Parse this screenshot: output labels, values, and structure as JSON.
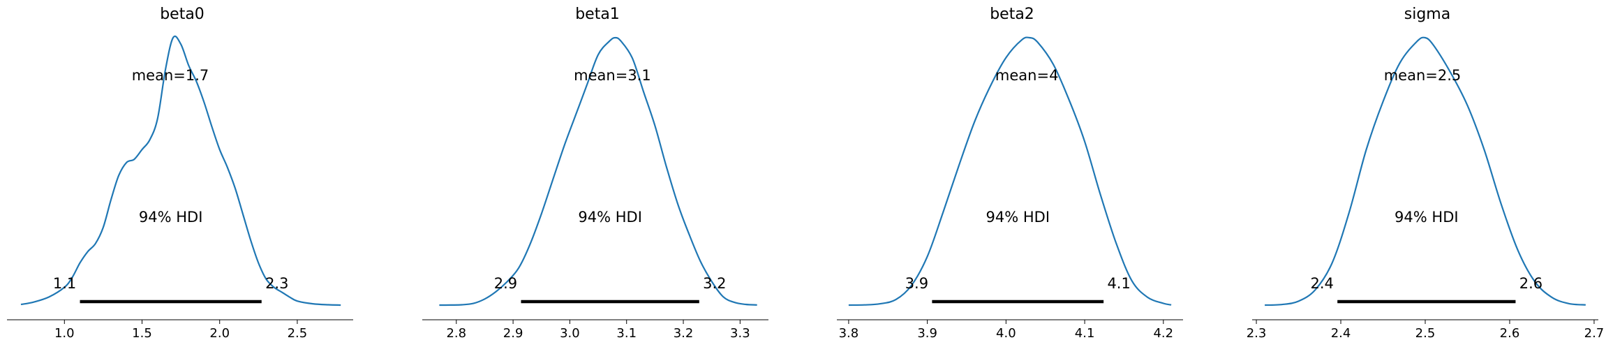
{
  "chart_data": [
    {
      "type": "line",
      "title": "beta0",
      "mean_label": "mean=1.7",
      "hdi_label": "94% HDI",
      "hdi": [
        1.1,
        2.27
      ],
      "hdi_low_label": "1.1",
      "hdi_high_label": "2.3",
      "xlim": [
        0.63,
        2.86
      ],
      "xticks": [
        1.0,
        1.5,
        2.0,
        2.5
      ],
      "xtick_labels": [
        "1.0",
        "1.5",
        "2.0",
        "2.5"
      ],
      "color": "#1f77b4",
      "x": [
        0.72,
        0.8,
        0.9,
        1.0,
        1.05,
        1.1,
        1.15,
        1.2,
        1.25,
        1.3,
        1.35,
        1.4,
        1.45,
        1.5,
        1.55,
        1.6,
        1.65,
        1.7,
        1.75,
        1.8,
        1.85,
        1.9,
        1.95,
        2.0,
        2.05,
        2.1,
        2.15,
        2.2,
        2.25,
        2.3,
        2.35,
        2.4,
        2.45,
        2.5,
        2.6,
        2.7,
        2.78
      ],
      "y": [
        0.004,
        0.018,
        0.05,
        0.11,
        0.17,
        0.26,
        0.33,
        0.38,
        0.48,
        0.65,
        0.8,
        0.88,
        0.9,
        0.96,
        1.02,
        1.15,
        1.45,
        1.65,
        1.61,
        1.48,
        1.38,
        1.25,
        1.1,
        0.96,
        0.85,
        0.72,
        0.56,
        0.4,
        0.26,
        0.16,
        0.11,
        0.08,
        0.05,
        0.025,
        0.008,
        0.002,
        0.0
      ]
    },
    {
      "type": "line",
      "title": "beta1",
      "mean_label": "mean=3.1",
      "hdi_label": "94% HDI",
      "hdi": [
        2.914,
        3.228
      ],
      "hdi_low_label": "2.9",
      "hdi_high_label": "3.2",
      "xlim": [
        2.74,
        3.35
      ],
      "xticks": [
        2.8,
        2.9,
        3.0,
        3.1,
        3.2,
        3.3
      ],
      "xtick_labels": [
        "2.8",
        "2.9",
        "3.0",
        "3.1",
        "3.2",
        "3.3"
      ],
      "color": "#1f77b4",
      "x": [
        2.77,
        2.79,
        2.81,
        2.83,
        2.85,
        2.87,
        2.89,
        2.91,
        2.93,
        2.95,
        2.97,
        2.99,
        3.01,
        3.03,
        3.05,
        3.07,
        3.08,
        3.09,
        3.11,
        3.13,
        3.15,
        3.17,
        3.19,
        3.21,
        3.23,
        3.25,
        3.27,
        3.29,
        3.31,
        3.33
      ],
      "y": [
        0.0,
        0.002,
        0.01,
        0.05,
        0.18,
        0.4,
        0.7,
        1.1,
        1.8,
        2.7,
        3.7,
        4.7,
        5.6,
        6.5,
        7.4,
        7.8,
        7.9,
        7.8,
        7.3,
        6.3,
        5.3,
        4.1,
        3.0,
        2.1,
        1.3,
        0.7,
        0.25,
        0.08,
        0.02,
        0.005
      ]
    },
    {
      "type": "line",
      "title": "beta2",
      "mean_label": "mean=4",
      "hdi_label": "94% HDI",
      "hdi": [
        3.906,
        4.124
      ],
      "hdi_low_label": "3.9",
      "hdi_high_label": "4.1",
      "xlim": [
        3.785,
        4.225
      ],
      "xticks": [
        3.8,
        3.9,
        4.0,
        4.1,
        4.2
      ],
      "xtick_labels": [
        "3.8",
        "3.9",
        "4.0",
        "4.1",
        "4.2"
      ],
      "color": "#1f77b4",
      "x": [
        3.8,
        3.82,
        3.84,
        3.86,
        3.88,
        3.9,
        3.92,
        3.94,
        3.96,
        3.98,
        4.0,
        4.02,
        4.03,
        4.04,
        4.06,
        4.08,
        4.1,
        4.12,
        4.14,
        4.16,
        4.18,
        4.2,
        4.21
      ],
      "y": [
        0.0,
        0.01,
        0.06,
        0.25,
        0.9,
        2.2,
        4.2,
        6.3,
        8.3,
        9.9,
        11.2,
        12.0,
        12.1,
        11.9,
        10.9,
        9.3,
        7.4,
        5.0,
        2.8,
        1.1,
        0.35,
        0.08,
        0.01
      ]
    },
    {
      "type": "line",
      "title": "sigma",
      "mean_label": "mean=2.5",
      "hdi_label": "94% HDI",
      "hdi": [
        2.396,
        2.607
      ],
      "hdi_low_label": "2.4",
      "hdi_high_label": "2.6",
      "xlim": [
        2.295,
        2.705
      ],
      "xticks": [
        2.3,
        2.4,
        2.5,
        2.6,
        2.7
      ],
      "xtick_labels": [
        "2.3",
        "2.4",
        "2.5",
        "2.6",
        "2.7"
      ],
      "color": "#1f77b4",
      "x": [
        2.31,
        2.33,
        2.35,
        2.37,
        2.39,
        2.41,
        2.43,
        2.45,
        2.47,
        2.49,
        2.5,
        2.51,
        2.53,
        2.55,
        2.57,
        2.59,
        2.61,
        2.63,
        2.65,
        2.67,
        2.69
      ],
      "y": [
        0.0,
        0.03,
        0.2,
        0.8,
        2.2,
        4.8,
        8.0,
        10.5,
        12.5,
        13.6,
        13.8,
        13.4,
        12.0,
        10.3,
        8.0,
        5.2,
        2.8,
        1.2,
        0.4,
        0.08,
        0.01
      ]
    }
  ]
}
